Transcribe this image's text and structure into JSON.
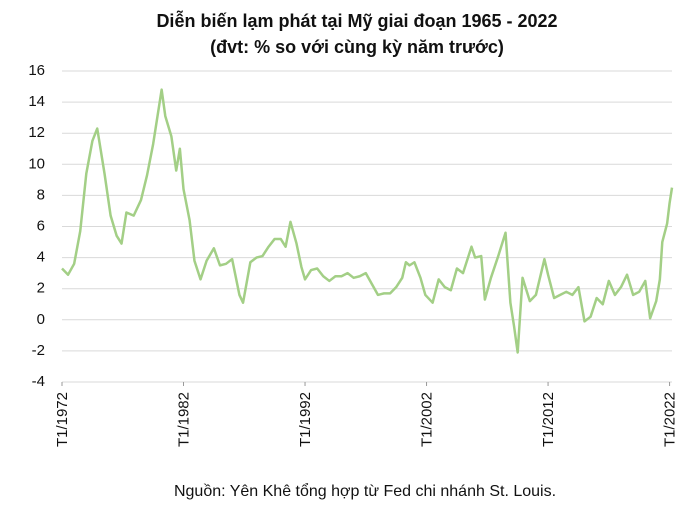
{
  "chart_data": {
    "type": "line",
    "title": "Diễn biến lạm phát tại Mỹ giai đoạn 1965 - 2022",
    "subtitle": "(đvt: % so với cùng kỳ năm trước)",
    "source": "Nguồn: Yên Khê tổng hợp từ Fed chi nhánh St. Louis.",
    "x": [
      1972.0,
      1972.5,
      1973.0,
      1973.5,
      1974.0,
      1974.5,
      1974.9,
      1975.5,
      1976.0,
      1976.5,
      1976.9,
      1977.3,
      1977.9,
      1978.5,
      1979.0,
      1979.5,
      1980.2,
      1980.5,
      1981.0,
      1981.4,
      1981.7,
      1982.0,
      1982.5,
      1982.9,
      1983.4,
      1983.9,
      1984.5,
      1985.0,
      1985.5,
      1986.0,
      1986.6,
      1986.9,
      1987.5,
      1988.0,
      1988.5,
      1989.0,
      1989.5,
      1990.0,
      1990.4,
      1990.8,
      1991.3,
      1991.7,
      1992.0,
      1992.5,
      1993.0,
      1993.5,
      1994.0,
      1994.5,
      1995.0,
      1995.5,
      1996.0,
      1996.5,
      1997.0,
      1997.5,
      1998.0,
      1998.5,
      1999.0,
      1999.5,
      2000.0,
      2000.3,
      2000.6,
      2001.0,
      2001.5,
      2001.9,
      2002.5,
      2003.0,
      2003.5,
      2004.0,
      2004.5,
      2005.0,
      2005.7,
      2006.0,
      2006.5,
      2006.8,
      2007.3,
      2007.9,
      2008.5,
      2008.9,
      2009.2,
      2009.5,
      2009.9,
      2010.5,
      2011.0,
      2011.7,
      2012.0,
      2012.5,
      2013.0,
      2013.5,
      2014.0,
      2014.5,
      2015.0,
      2015.5,
      2016.0,
      2016.5,
      2017.0,
      2017.5,
      2018.0,
      2018.5,
      2019.0,
      2019.5,
      2020.0,
      2020.4,
      2020.9,
      2021.2,
      2021.4,
      2021.8,
      2022.0,
      2022.2
    ],
    "series": [
      {
        "color": "#a3cf86",
        "values": [
          3.3,
          2.9,
          3.6,
          5.7,
          9.4,
          11.5,
          12.3,
          9.4,
          6.7,
          5.4,
          4.9,
          6.9,
          6.7,
          7.7,
          9.3,
          11.3,
          14.8,
          13.1,
          11.8,
          9.6,
          11.0,
          8.4,
          6.4,
          3.8,
          2.6,
          3.8,
          4.6,
          3.5,
          3.6,
          3.9,
          1.6,
          1.1,
          3.7,
          4.0,
          4.1,
          4.7,
          5.2,
          5.2,
          4.7,
          6.3,
          4.9,
          3.4,
          2.6,
          3.2,
          3.3,
          2.8,
          2.5,
          2.8,
          2.8,
          3.0,
          2.7,
          2.8,
          3.0,
          2.3,
          1.6,
          1.7,
          1.7,
          2.1,
          2.7,
          3.7,
          3.5,
          3.7,
          2.7,
          1.6,
          1.1,
          2.6,
          2.1,
          1.9,
          3.3,
          3.0,
          4.7,
          4.0,
          4.1,
          1.3,
          2.7,
          4.1,
          5.6,
          1.1,
          -0.4,
          -2.1,
          2.7,
          1.2,
          1.6,
          3.9,
          2.9,
          1.4,
          1.6,
          1.8,
          1.6,
          2.1,
          -0.1,
          0.2,
          1.4,
          1.0,
          2.5,
          1.6,
          2.1,
          2.9,
          1.6,
          1.8,
          2.5,
          0.1,
          1.2,
          2.6,
          5.0,
          6.2,
          7.5,
          8.5
        ]
      }
    ],
    "xlim": [
      1972,
      2022.2
    ],
    "xticks": [
      {
        "value": 1972,
        "label": "T1/1972"
      },
      {
        "value": 1982,
        "label": "T1/1982"
      },
      {
        "value": 1992,
        "label": "T1/1992"
      },
      {
        "value": 2002,
        "label": "T1/2002"
      },
      {
        "value": 2012,
        "label": "T1/2012"
      },
      {
        "value": 2022,
        "label": "T1/2022"
      }
    ],
    "ylim": [
      -4,
      16
    ],
    "yticks": [
      -4,
      -2,
      0,
      2,
      4,
      6,
      8,
      10,
      12,
      14,
      16
    ],
    "grid": true
  }
}
